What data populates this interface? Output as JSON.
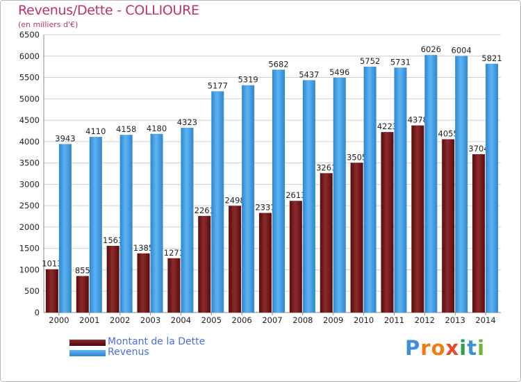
{
  "chart_data": {
    "type": "bar",
    "title": "Revenus/Dette - COLLIOURE",
    "subtitle": "(en milliers d'€)",
    "categories": [
      "2000",
      "2001",
      "2002",
      "2003",
      "2004",
      "2005",
      "2006",
      "2007",
      "2008",
      "2009",
      "2010",
      "2011",
      "2012",
      "2013",
      "2014"
    ],
    "series": [
      {
        "name": "Montant de la Dette",
        "color": "#7b1f1f",
        "values": [
          1013,
          855,
          1561,
          1385,
          1271,
          2261,
          2498,
          2331,
          2613,
          3261,
          3505,
          4223,
          4378,
          4055,
          3704
        ],
        "labels": [
          "1013",
          "855",
          "1561",
          "1385",
          "1271",
          "2261",
          "2498",
          "2331",
          "2613",
          "3261",
          "3505",
          "4223",
          "4378",
          "4055",
          "3704"
        ]
      },
      {
        "name": "Revenus",
        "color": "#4aa3e8",
        "values": [
          3943,
          4110,
          4158,
          4180,
          4323,
          5177,
          5319,
          5682,
          5437,
          5496,
          5752,
          5731,
          6026,
          6004,
          5821
        ],
        "labels": [
          "3943",
          "4110",
          "4158",
          "4180",
          "4323",
          "5177",
          "5319",
          "5682",
          "5437",
          "5496",
          "5752",
          "5731",
          "6026",
          "6004",
          "5821"
        ]
      }
    ],
    "ylim": [
      0,
      6500
    ],
    "yticks": [
      0,
      500,
      1000,
      1500,
      2000,
      2500,
      3000,
      3500,
      4000,
      4500,
      5000,
      5500,
      6000,
      6500
    ],
    "grid": true,
    "legend_position": "bottom-left"
  },
  "logo": {
    "text": "Proxiti",
    "letters": [
      "P",
      "r",
      "o",
      "x",
      "i",
      "t",
      "i"
    ],
    "colors": [
      "#3e8fd6",
      "#f07c12",
      "#f07c12",
      "#e84a27",
      "#2da04a",
      "#3e8fd6",
      "#6fb33a"
    ]
  }
}
